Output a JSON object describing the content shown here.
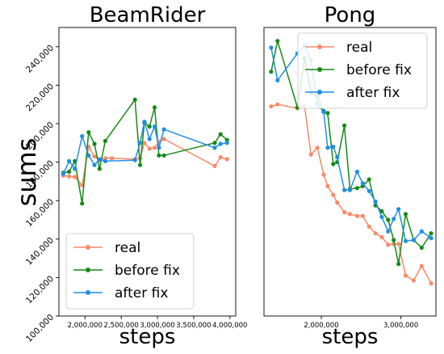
{
  "figure": {
    "ylabel": "sums"
  },
  "chart_data": [
    {
      "type": "line",
      "title": "BeamRider",
      "xlabel": "steps",
      "ylabel": "sums",
      "xlim": [
        1640000,
        4080000
      ],
      "ylim": [
        100000,
        250000
      ],
      "xticks": [
        2000000,
        2500000,
        3000000,
        3500000,
        4000000
      ],
      "xtick_labels": [
        "2,000,000",
        "2,500,000",
        "3,000,000",
        "3,500,000",
        "4,000,000"
      ],
      "yticks": [
        100000,
        120000,
        140000,
        160000,
        180000,
        200000,
        220000,
        240000
      ],
      "ytick_labels": [
        "100,000",
        "120,000",
        "140,000",
        "160,000",
        "180,000",
        "200,000",
        "220,000",
        "240,000"
      ],
      "grid": false,
      "legend": "lower-left",
      "series": [
        {
          "name": "real",
          "color": "#fa8a68",
          "x": [
            1700000,
            1780000,
            1860000,
            1960000,
            2050000,
            2130000,
            2200000,
            2280000,
            2370000,
            2690000,
            2760000,
            2820000,
            2890000,
            2960000,
            3020000,
            3090000,
            3790000,
            3870000,
            3960000
          ],
          "y": [
            173000,
            172500,
            172300,
            168000,
            188000,
            183000,
            181000,
            182000,
            182000,
            181500,
            182000,
            190000,
            187000,
            187500,
            190500,
            192000,
            178000,
            182500,
            181500
          ]
        },
        {
          "name": "before fix",
          "color": "#168916",
          "x": [
            1700000,
            1780000,
            1860000,
            1960000,
            2050000,
            2130000,
            2200000,
            2280000,
            2690000,
            2760000,
            2820000,
            2890000,
            2960000,
            3020000,
            3090000,
            3790000,
            3870000,
            3960000
          ],
          "y": [
            174500,
            175000,
            180500,
            158500,
            195500,
            189500,
            176500,
            191000,
            212500,
            178500,
            200500,
            198500,
            208500,
            183500,
            183500,
            190000,
            194500,
            191500
          ]
        },
        {
          "name": "after fix",
          "color": "#1e8ee8",
          "x": [
            1700000,
            1780000,
            1860000,
            1960000,
            2050000,
            2130000,
            2200000,
            2280000,
            2690000,
            2760000,
            2820000,
            2890000,
            2960000,
            3020000,
            3090000,
            3790000,
            3870000,
            3960000
          ],
          "y": [
            174000,
            180500,
            176500,
            193500,
            183500,
            178500,
            181500,
            180500,
            181000,
            190000,
            201000,
            192000,
            198500,
            187500,
            197000,
            187500,
            189500,
            190000
          ]
        }
      ]
    },
    {
      "type": "line",
      "title": "Pong",
      "xlabel": "steps",
      "xlim": [
        1280000,
        3440000
      ],
      "ylim": [
        100000,
        250000
      ],
      "xticks": [
        2000000,
        3000000
      ],
      "xtick_labels": [
        "2,000,000",
        "3,000,000"
      ],
      "grid": false,
      "legend": "top-right",
      "series": [
        {
          "name": "real",
          "color": "#fa8a68",
          "x": [
            1370000,
            1450000,
            1700000,
            1790000,
            1870000,
            1950000,
            2030000,
            2080000,
            2150000,
            2200000,
            2290000,
            2360000,
            2450000,
            2520000,
            2600000,
            2680000,
            2760000,
            2840000,
            2910000,
            2970000,
            3060000,
            3160000,
            3260000,
            3380000
          ],
          "y": [
            209000,
            210000,
            208000,
            209000,
            184000,
            187500,
            173500,
            167500,
            163000,
            159000,
            154000,
            153000,
            152000,
            152000,
            146500,
            143000,
            141000,
            137000,
            137500,
            137500,
            121000,
            118500,
            126000,
            117000
          ]
        },
        {
          "name": "before fix",
          "color": "#168916",
          "x": [
            1370000,
            1450000,
            1700000,
            1790000,
            1870000,
            1950000,
            2030000,
            2080000,
            2150000,
            2200000,
            2290000,
            2360000,
            2450000,
            2520000,
            2600000,
            2680000,
            2760000,
            2840000,
            2910000,
            2970000,
            3060000,
            3160000,
            3260000,
            3380000
          ],
          "y": [
            227000,
            243000,
            208500,
            234000,
            216000,
            214500,
            206500,
            205500,
            179000,
            180000,
            199000,
            166000,
            166500,
            167500,
            171000,
            157500,
            154500,
            150000,
            139500,
            127000,
            153000,
            139500,
            135500,
            143000
          ]
        },
        {
          "name": "after fix",
          "color": "#1e8ee8",
          "x": [
            1370000,
            1450000,
            1700000,
            1790000,
            1870000,
            1950000,
            2030000,
            2080000,
            2150000,
            2200000,
            2290000,
            2360000,
            2450000,
            2520000,
            2600000,
            2680000,
            2760000,
            2840000,
            2910000,
            2970000,
            3060000,
            3160000,
            3260000,
            3380000
          ],
          "y": [
            239500,
            222500,
            236500,
            240500,
            233000,
            210000,
            206000,
            187500,
            188000,
            182500,
            165500,
            165500,
            175000,
            169000,
            165000,
            159500,
            151500,
            144000,
            150500,
            155500,
            139000,
            139500,
            144000,
            140500
          ]
        }
      ]
    }
  ]
}
